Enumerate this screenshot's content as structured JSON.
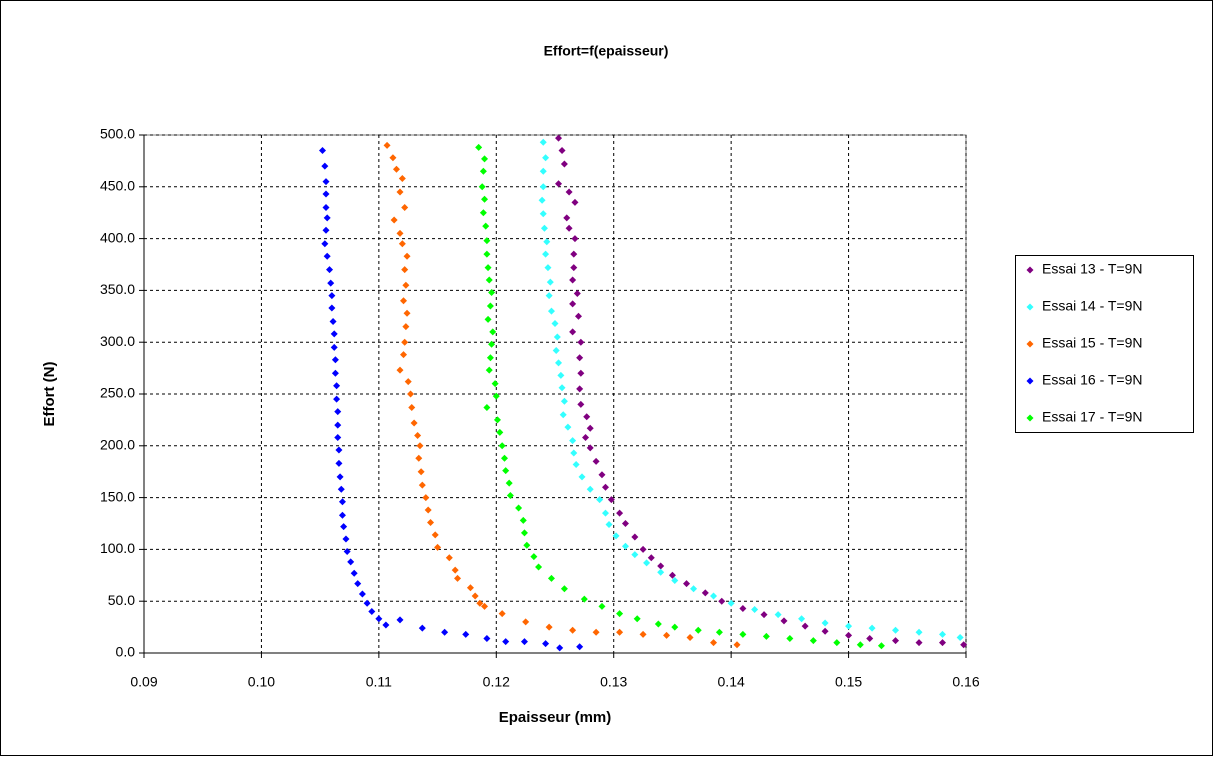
{
  "chart_data": {
    "type": "scatter",
    "title": "Effort=f(epaisseur)",
    "x_label": "Epaisseur (mm)",
    "y_label": "Effort (N)",
    "xlim": [
      0.09,
      0.16
    ],
    "xticks": [
      0.09,
      {
        "value": 0.1,
        "label": "0.10"
      },
      0.11,
      0.12,
      0.13,
      0.14,
      0.15,
      0.16
    ],
    "ylim": [
      0,
      500
    ],
    "yticks": [
      {
        "value": 0,
        "label": "0.0"
      },
      {
        "value": 50,
        "label": "50.0"
      },
      {
        "value": 100,
        "label": "100.0"
      },
      {
        "value": 150,
        "label": "150.0"
      },
      {
        "value": 200,
        "label": "200.0"
      },
      {
        "value": 250,
        "label": "250.0"
      },
      {
        "value": 300,
        "label": "300.0"
      },
      {
        "value": 350,
        "label": "350.0"
      },
      {
        "value": 400,
        "label": "400.0"
      },
      {
        "value": 450,
        "label": "450.0"
      },
      {
        "value": 500,
        "label": "500.0"
      }
    ],
    "grid": true,
    "legend": "right",
    "series": [
      {
        "name": "Essai 13 - T=9N",
        "color": "#800080",
        "x": [
          0.1253,
          0.1256,
          0.1258,
          0.1253,
          0.1262,
          0.1267,
          0.126,
          0.1262,
          0.1267,
          0.1266,
          0.1266,
          0.1265,
          0.1269,
          0.1265,
          0.127,
          0.1265,
          0.1272,
          0.1271,
          0.1272,
          0.1271,
          0.1272,
          0.1277,
          0.128,
          0.1276,
          0.128,
          0.1285,
          0.129,
          0.1293,
          0.1298,
          0.1305,
          0.131,
          0.1318,
          0.1325,
          0.1332,
          0.134,
          0.135,
          0.1362,
          0.1378,
          0.1392,
          0.141,
          0.1428,
          0.1445,
          0.1463,
          0.148,
          0.15,
          0.1518,
          0.154,
          0.156,
          0.158,
          0.1598
        ],
        "values": [
          497,
          485,
          472,
          453,
          445,
          435,
          420,
          410,
          400,
          385,
          372,
          360,
          347,
          337,
          325,
          310,
          300,
          285,
          270,
          255,
          240,
          228,
          217,
          208,
          198,
          185,
          172,
          160,
          148,
          135,
          125,
          112,
          100,
          92,
          84,
          75,
          67,
          58,
          50,
          43,
          37,
          31,
          26,
          21,
          17,
          14,
          12,
          10,
          10,
          8
        ]
      },
      {
        "name": "Essai 14 - T=9N",
        "color": "#33ffff",
        "x": [
          0.124,
          0.1242,
          0.124,
          0.124,
          0.1239,
          0.124,
          0.1241,
          0.1243,
          0.1242,
          0.1244,
          0.1246,
          0.1245,
          0.1247,
          0.125,
          0.1252,
          0.1251,
          0.1253,
          0.1255,
          0.1256,
          0.1258,
          0.1257,
          0.1261,
          0.1265,
          0.1266,
          0.1268,
          0.1273,
          0.128,
          0.1288,
          0.1293,
          0.1296,
          0.1302,
          0.131,
          0.1318,
          0.1328,
          0.134,
          0.1352,
          0.1368,
          0.1385,
          0.14,
          0.142,
          0.144,
          0.146,
          0.148,
          0.15,
          0.152,
          0.154,
          0.156,
          0.158,
          0.1595
        ],
        "values": [
          493,
          478,
          465,
          450,
          437,
          424,
          410,
          397,
          385,
          372,
          358,
          345,
          330,
          318,
          305,
          292,
          280,
          268,
          256,
          243,
          230,
          218,
          205,
          193,
          182,
          170,
          158,
          148,
          135,
          124,
          113,
          103,
          95,
          87,
          78,
          70,
          62,
          55,
          48,
          42,
          37,
          33,
          29,
          26,
          24,
          22,
          20,
          18,
          15
        ]
      },
      {
        "name": "Essai 15 - T=9N",
        "color": "#ff6600",
        "x": [
          0.1107,
          0.1112,
          0.1115,
          0.112,
          0.1118,
          0.1122,
          0.1113,
          0.1118,
          0.112,
          0.1124,
          0.1122,
          0.1123,
          0.1121,
          0.1124,
          0.1123,
          0.1122,
          0.1121,
          0.1118,
          0.1125,
          0.1127,
          0.1128,
          0.113,
          0.1133,
          0.1135,
          0.1134,
          0.1136,
          0.1137,
          0.114,
          0.1142,
          0.1144,
          0.1148,
          0.115,
          0.116,
          0.1165,
          0.1167,
          0.1178,
          0.1182,
          0.1186,
          0.119,
          0.1205,
          0.1225,
          0.1245,
          0.1265,
          0.1285,
          0.1305,
          0.1325,
          0.1345,
          0.1365,
          0.1385,
          0.1405
        ],
        "values": [
          490,
          478,
          467,
          458,
          445,
          430,
          418,
          405,
          395,
          383,
          370,
          355,
          340,
          328,
          315,
          300,
          288,
          273,
          262,
          250,
          237,
          222,
          210,
          200,
          188,
          175,
          162,
          150,
          138,
          126,
          114,
          102,
          92,
          80,
          72,
          63,
          55,
          48,
          45,
          38,
          30,
          25,
          22,
          20,
          20,
          18,
          17,
          15,
          10,
          8
        ]
      },
      {
        "name": "Essai 16 - T=9N",
        "color": "#0000ff",
        "x": [
          0.1052,
          0.1054,
          0.1055,
          0.1055,
          0.1055,
          0.1056,
          0.1055,
          0.1054,
          0.1056,
          0.1058,
          0.1059,
          0.106,
          0.106,
          0.1061,
          0.1062,
          0.1062,
          0.1063,
          0.1063,
          0.1064,
          0.1064,
          0.1065,
          0.1065,
          0.1065,
          0.1066,
          0.1066,
          0.1067,
          0.1068,
          0.1069,
          0.1069,
          0.107,
          0.1072,
          0.1073,
          0.1076,
          0.1079,
          0.1082,
          0.1086,
          0.109,
          0.1094,
          0.11,
          0.1106,
          0.1118,
          0.1137,
          0.1156,
          0.1174,
          0.1192,
          0.1208,
          0.1224,
          0.1242,
          0.1254,
          0.1271
        ],
        "values": [
          485,
          470,
          455,
          443,
          430,
          420,
          408,
          395,
          383,
          370,
          357,
          345,
          333,
          320,
          308,
          295,
          283,
          270,
          258,
          245,
          233,
          220,
          208,
          196,
          183,
          170,
          158,
          146,
          133,
          122,
          110,
          98,
          88,
          77,
          67,
          57,
          48,
          40,
          33,
          27,
          32,
          24,
          20,
          18,
          14,
          11,
          11,
          9,
          5,
          6
        ]
      },
      {
        "name": "Essai 17 - T=9N",
        "color": "#00ff00",
        "x": [
          0.1185,
          0.119,
          0.1189,
          0.1188,
          0.119,
          0.1189,
          0.1191,
          0.1192,
          0.1192,
          0.1193,
          0.1194,
          0.1196,
          0.1195,
          0.1193,
          0.1197,
          0.1196,
          0.1195,
          0.1194,
          0.1199,
          0.12,
          0.1192,
          0.1201,
          0.1203,
          0.1205,
          0.1207,
          0.1208,
          0.1211,
          0.1212,
          0.1219,
          0.1223,
          0.1224,
          0.1226,
          0.1232,
          0.1236,
          0.1247,
          0.1258,
          0.1275,
          0.129,
          0.1305,
          0.132,
          0.1338,
          0.1352,
          0.1372,
          0.139,
          0.141,
          0.143,
          0.145,
          0.147,
          0.149,
          0.151,
          0.1528
        ],
        "values": [
          488,
          477,
          465,
          450,
          438,
          425,
          412,
          398,
          385,
          372,
          360,
          348,
          335,
          322,
          310,
          298,
          285,
          273,
          260,
          248,
          237,
          225,
          213,
          200,
          188,
          176,
          164,
          152,
          140,
          128,
          116,
          104,
          93,
          83,
          72,
          62,
          52,
          45,
          38,
          33,
          28,
          25,
          22,
          20,
          18,
          16,
          14,
          12,
          10,
          8,
          7
        ]
      }
    ]
  }
}
